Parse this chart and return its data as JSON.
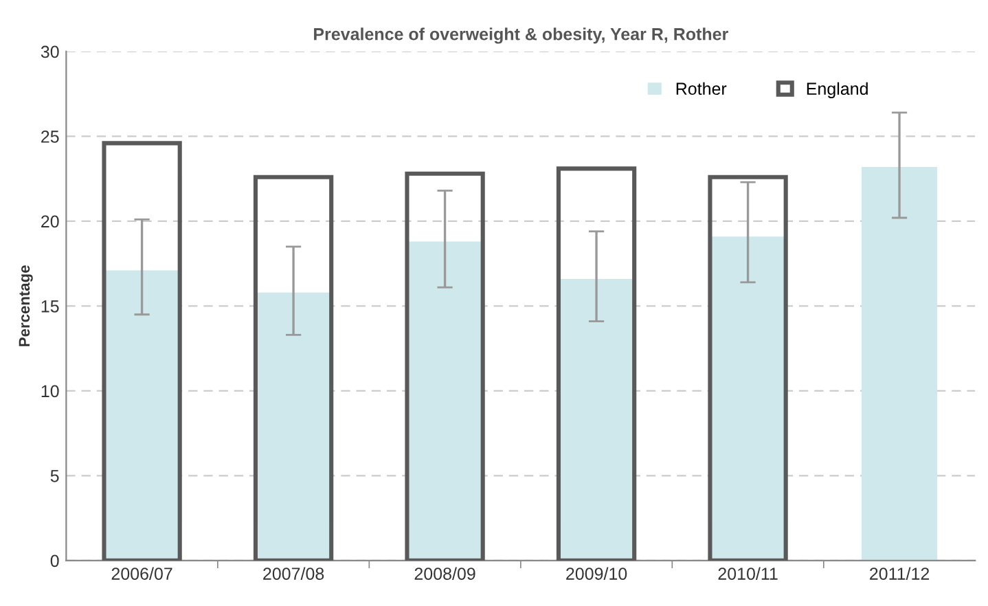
{
  "chart_data": {
    "type": "bar",
    "title": "Prevalence of overweight & obesity, Year R, Rother",
    "ylabel": "Percentage",
    "categories": [
      "2006/07",
      "2007/08",
      "2008/09",
      "2009/10",
      "2010/11",
      "2011/12"
    ],
    "series": [
      {
        "name": "Rother",
        "color": "#cfe8ec",
        "values": [
          17.1,
          15.8,
          18.8,
          16.6,
          19.1,
          23.2
        ],
        "errors": [
          [
            14.5,
            20.1
          ],
          [
            13.3,
            18.5
          ],
          [
            16.1,
            21.8
          ],
          [
            14.1,
            19.4
          ],
          [
            16.4,
            22.3
          ],
          [
            20.2,
            26.4
          ]
        ]
      },
      {
        "name": "England",
        "color": "#595959",
        "values": [
          24.6,
          22.6,
          22.8,
          23.1,
          22.6,
          null
        ]
      }
    ],
    "ylim": [
      0,
      30
    ],
    "yticks": [
      0,
      5,
      10,
      15,
      20,
      25,
      30
    ],
    "grid": "y",
    "legend": "top right"
  }
}
